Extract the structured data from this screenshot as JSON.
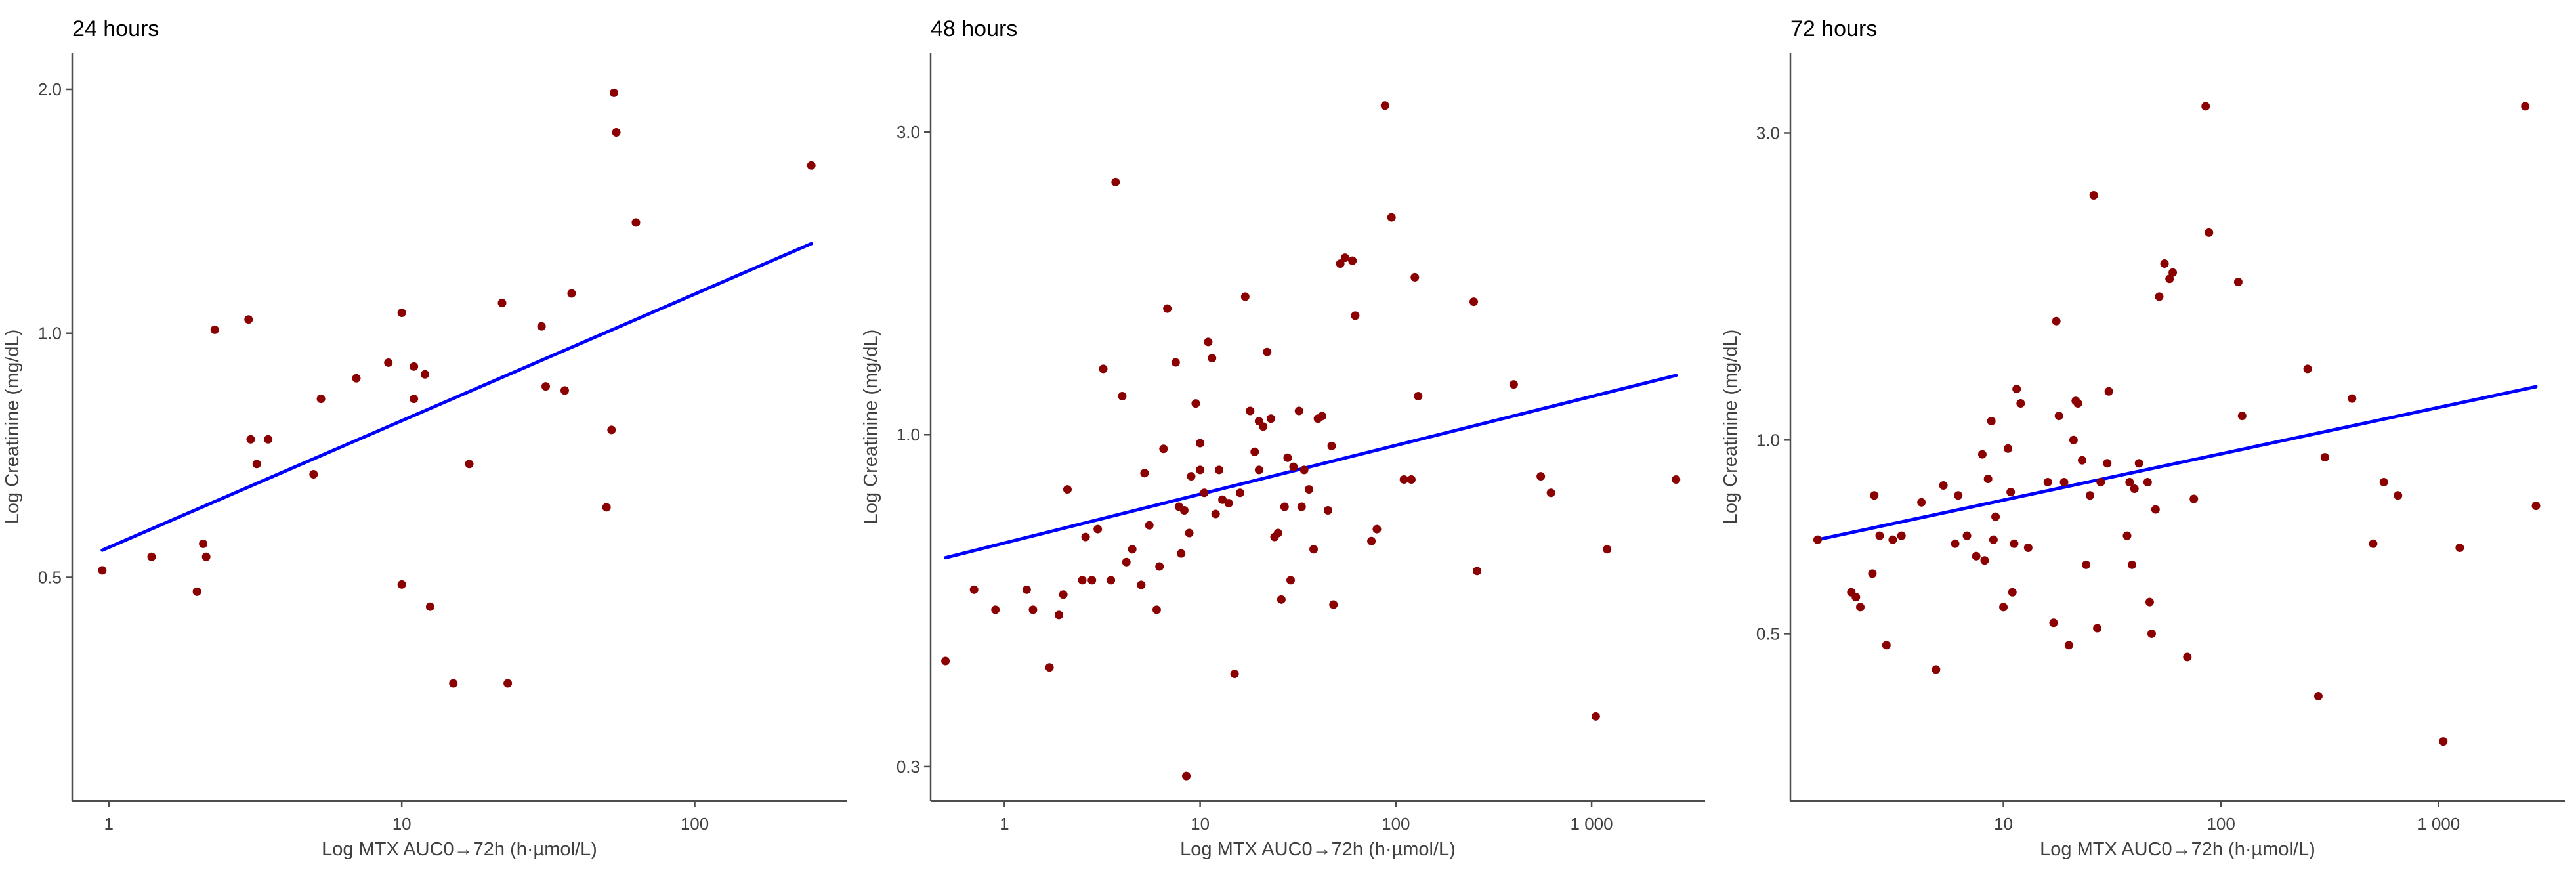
{
  "chart_data": [
    {
      "type": "scatter",
      "title": "24 hours",
      "xlabel": "Log MTX AUC0→72h  (h·µmol/L)",
      "ylabel": "Log Creatinine (mg/dL)",
      "x_scale": "log",
      "y_scale": "log",
      "xlim": [
        0.75,
        330
      ],
      "ylim": [
        0.265,
        2.22
      ],
      "x_ticks": [
        1,
        10,
        100
      ],
      "x_tick_labels": [
        "1",
        "10",
        "100"
      ],
      "y_ticks": [
        0.5,
        1.0,
        2.0
      ],
      "y_tick_labels": [
        "0.5",
        "1.0",
        "2.0"
      ],
      "colors": {
        "points": "#8b0000",
        "fit_line": "#0000ff",
        "axes": "#4d4d4d"
      },
      "grid": false,
      "fit_line": {
        "x": [
          0.95,
          250
        ],
        "y": [
          0.54,
          1.29
        ]
      },
      "points": [
        [
          0.95,
          0.51
        ],
        [
          1.4,
          0.53
        ],
        [
          2.0,
          0.48
        ],
        [
          2.1,
          0.55
        ],
        [
          2.15,
          0.53
        ],
        [
          2.3,
          1.01
        ],
        [
          3.0,
          1.04
        ],
        [
          3.05,
          0.74
        ],
        [
          3.2,
          0.69
        ],
        [
          3.5,
          0.74
        ],
        [
          5.0,
          0.67
        ],
        [
          5.3,
          0.83
        ],
        [
          7.0,
          0.88
        ],
        [
          9.0,
          0.92
        ],
        [
          10.0,
          1.06
        ],
        [
          10.0,
          0.49
        ],
        [
          11.0,
          0.83
        ],
        [
          11.0,
          0.91
        ],
        [
          12.0,
          0.89
        ],
        [
          12.5,
          0.46
        ],
        [
          15.0,
          0.37
        ],
        [
          17.0,
          0.69
        ],
        [
          22.0,
          1.09
        ],
        [
          23.0,
          0.37
        ],
        [
          30.0,
          1.02
        ],
        [
          31.0,
          0.86
        ],
        [
          36.0,
          0.85
        ],
        [
          38.0,
          1.12
        ],
        [
          50.0,
          0.61
        ],
        [
          52.0,
          0.76
        ],
        [
          53.0,
          1.98
        ],
        [
          54.0,
          1.77
        ],
        [
          63.0,
          1.37
        ],
        [
          250.0,
          1.61
        ]
      ]
    },
    {
      "type": "scatter",
      "title": "48 hours",
      "xlabel": "Log MTX AUC0→72h  (h·µmol/L)",
      "ylabel": "Log Creatinine (mg/dL)",
      "x_scale": "log",
      "y_scale": "log",
      "xlim": [
        0.42,
        3800
      ],
      "ylim": [
        0.265,
        4.0
      ],
      "x_ticks": [
        1,
        10,
        100,
        1000
      ],
      "x_tick_labels": [
        "1",
        "10",
        "100",
        "1 000"
      ],
      "y_ticks": [
        0.3,
        1.0,
        3.0
      ],
      "y_tick_labels": [
        "0.3",
        "1.0",
        "3.0"
      ],
      "colors": {
        "points": "#8b0000",
        "fit_line": "#0000ff",
        "axes": "#4d4d4d"
      },
      "grid": false,
      "fit_line": {
        "x": [
          0.5,
          2700
        ],
        "y": [
          0.64,
          1.24
        ]
      },
      "points": [
        [
          0.5,
          0.44
        ],
        [
          0.7,
          0.57
        ],
        [
          0.9,
          0.53
        ],
        [
          1.3,
          0.57
        ],
        [
          1.4,
          0.53
        ],
        [
          1.7,
          0.43
        ],
        [
          1.9,
          0.52
        ],
        [
          2.0,
          0.56
        ],
        [
          2.1,
          0.82
        ],
        [
          2.5,
          0.59
        ],
        [
          2.6,
          0.69
        ],
        [
          2.8,
          0.59
        ],
        [
          3.0,
          0.71
        ],
        [
          3.2,
          1.27
        ],
        [
          3.5,
          0.59
        ],
        [
          3.7,
          2.5
        ],
        [
          4.0,
          1.15
        ],
        [
          4.2,
          0.63
        ],
        [
          4.5,
          0.66
        ],
        [
          5.0,
          0.58
        ],
        [
          5.2,
          0.87
        ],
        [
          5.5,
          0.72
        ],
        [
          6.0,
          0.53
        ],
        [
          6.2,
          0.62
        ],
        [
          6.5,
          0.95
        ],
        [
          6.8,
          1.58
        ],
        [
          7.5,
          1.3
        ],
        [
          7.8,
          0.77
        ],
        [
          8.0,
          0.65
        ],
        [
          8.3,
          0.76
        ],
        [
          8.5,
          0.29
        ],
        [
          8.8,
          0.7
        ],
        [
          9.0,
          0.86
        ],
        [
          9.5,
          1.12
        ],
        [
          10.0,
          0.88
        ],
        [
          10.0,
          0.97
        ],
        [
          10.5,
          0.81
        ],
        [
          11.0,
          1.4
        ],
        [
          11.5,
          1.32
        ],
        [
          12.0,
          0.75
        ],
        [
          12.5,
          0.88
        ],
        [
          13.0,
          0.79
        ],
        [
          14.0,
          0.78
        ],
        [
          15.0,
          0.42
        ],
        [
          16.0,
          0.81
        ],
        [
          17.0,
          1.65
        ],
        [
          18.0,
          1.09
        ],
        [
          19.0,
          0.94
        ],
        [
          20.0,
          1.05
        ],
        [
          20.0,
          0.88
        ],
        [
          21.0,
          1.03
        ],
        [
          22.0,
          1.35
        ],
        [
          23.0,
          1.06
        ],
        [
          24.0,
          0.69
        ],
        [
          25.0,
          0.7
        ],
        [
          26.0,
          0.55
        ],
        [
          27.0,
          0.77
        ],
        [
          28.0,
          0.92
        ],
        [
          29.0,
          0.59
        ],
        [
          30.0,
          0.89
        ],
        [
          32.0,
          1.09
        ],
        [
          33.0,
          0.77
        ],
        [
          34.0,
          0.88
        ],
        [
          36.0,
          0.82
        ],
        [
          38.0,
          0.66
        ],
        [
          40.0,
          1.06
        ],
        [
          42.0,
          1.07
        ],
        [
          45.0,
          0.76
        ],
        [
          47.0,
          0.96
        ],
        [
          48.0,
          0.54
        ],
        [
          52.0,
          1.86
        ],
        [
          55.0,
          1.9
        ],
        [
          60.0,
          1.88
        ],
        [
          62.0,
          1.54
        ],
        [
          75.0,
          0.68
        ],
        [
          80.0,
          0.71
        ],
        [
          88.0,
          3.3
        ],
        [
          95.0,
          2.2
        ],
        [
          110.0,
          0.85
        ],
        [
          120.0,
          0.85
        ],
        [
          125.0,
          1.77
        ],
        [
          130.0,
          1.15
        ],
        [
          250.0,
          1.62
        ],
        [
          260.0,
          0.61
        ],
        [
          400.0,
          1.2
        ],
        [
          550.0,
          0.86
        ],
        [
          620.0,
          0.81
        ],
        [
          1050.0,
          0.36
        ],
        [
          1200.0,
          0.66
        ],
        [
          2700.0,
          0.85
        ]
      ]
    },
    {
      "type": "scatter",
      "title": "72 hours",
      "xlabel": "Log MTX AUC0→72h  (h·µmol/L)",
      "ylabel": "Log Creatinine (mg/dL)",
      "x_scale": "log",
      "y_scale": "log",
      "xlim": [
        1.05,
        3800
      ],
      "ylim": [
        0.275,
        4.0
      ],
      "x_ticks": [
        10,
        100,
        1000
      ],
      "x_tick_labels": [
        "10",
        "100",
        "1 000"
      ],
      "y_ticks": [
        0.5,
        1.0,
        3.0
      ],
      "y_tick_labels": [
        "0.5",
        "1.0",
        "3.0"
      ],
      "colors": {
        "points": "#8b0000",
        "fit_line": "#0000ff",
        "axes": "#4d4d4d"
      },
      "grid": false,
      "fit_line": {
        "x": [
          1.4,
          2800
        ],
        "y": [
          0.7,
          1.21
        ]
      },
      "points": [
        [
          1.4,
          0.7
        ],
        [
          2.0,
          0.58
        ],
        [
          2.1,
          0.57
        ],
        [
          2.2,
          0.55
        ],
        [
          2.5,
          0.62
        ],
        [
          2.55,
          0.82
        ],
        [
          2.7,
          0.71
        ],
        [
          2.9,
          0.48
        ],
        [
          3.1,
          0.7
        ],
        [
          3.4,
          0.71
        ],
        [
          4.2,
          0.8
        ],
        [
          4.9,
          0.44
        ],
        [
          5.3,
          0.85
        ],
        [
          6.0,
          0.69
        ],
        [
          6.2,
          0.82
        ],
        [
          6.8,
          0.71
        ],
        [
          7.5,
          0.66
        ],
        [
          8.0,
          0.95
        ],
        [
          8.2,
          0.65
        ],
        [
          8.5,
          0.87
        ],
        [
          8.8,
          1.07
        ],
        [
          9.0,
          0.7
        ],
        [
          9.2,
          0.76
        ],
        [
          10.0,
          0.55
        ],
        [
          10.5,
          0.97
        ],
        [
          10.8,
          0.83
        ],
        [
          11.0,
          0.58
        ],
        [
          11.2,
          0.69
        ],
        [
          11.5,
          1.2
        ],
        [
          12.0,
          1.14
        ],
        [
          13.0,
          0.68
        ],
        [
          16.0,
          0.86
        ],
        [
          17.0,
          0.52
        ],
        [
          17.5,
          1.53
        ],
        [
          18.0,
          1.09
        ],
        [
          19.0,
          0.86
        ],
        [
          20.0,
          0.48
        ],
        [
          21.0,
          1.0
        ],
        [
          21.5,
          1.15
        ],
        [
          22.0,
          1.14
        ],
        [
          23.0,
          0.93
        ],
        [
          24.0,
          0.64
        ],
        [
          25.0,
          0.82
        ],
        [
          26.0,
          2.4
        ],
        [
          27.0,
          0.51
        ],
        [
          28.0,
          0.86
        ],
        [
          30.0,
          0.92
        ],
        [
          30.5,
          1.19
        ],
        [
          37.0,
          0.71
        ],
        [
          38.0,
          0.86
        ],
        [
          39.0,
          0.64
        ],
        [
          40.0,
          0.84
        ],
        [
          42.0,
          0.92
        ],
        [
          46.0,
          0.86
        ],
        [
          47.0,
          0.56
        ],
        [
          48.0,
          0.5
        ],
        [
          50.0,
          0.78
        ],
        [
          52.0,
          1.67
        ],
        [
          55.0,
          1.88
        ],
        [
          58.0,
          1.78
        ],
        [
          60.0,
          1.82
        ],
        [
          70.0,
          0.46
        ],
        [
          75.0,
          0.81
        ],
        [
          85.0,
          3.3
        ],
        [
          88.0,
          2.1
        ],
        [
          120.0,
          1.76
        ],
        [
          125.0,
          1.09
        ],
        [
          250.0,
          1.29
        ],
        [
          280.0,
          0.4
        ],
        [
          300.0,
          0.94
        ],
        [
          400.0,
          1.16
        ],
        [
          500.0,
          0.69
        ],
        [
          560.0,
          0.86
        ],
        [
          650.0,
          0.82
        ],
        [
          1050.0,
          0.34
        ],
        [
          1250.0,
          0.68
        ],
        [
          2500.0,
          3.3
        ],
        [
          2800.0,
          0.79
        ]
      ]
    }
  ]
}
